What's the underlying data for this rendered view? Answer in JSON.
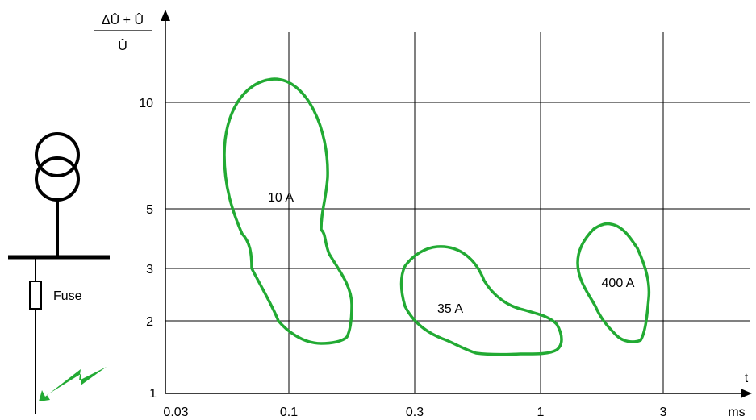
{
  "axes": {
    "y_label_numerator": "ΔÛ + Û",
    "y_label_denominator": "Û",
    "x_label_t": "t",
    "x_unit": "ms",
    "y_ticks": [
      "10",
      "5",
      "3",
      "2",
      "1"
    ],
    "x_ticks": [
      "0.03",
      "0.1",
      "0.3",
      "1",
      "3"
    ]
  },
  "regions": [
    {
      "label": "10 A"
    },
    {
      "label": "35 A"
    },
    {
      "label": "400 A"
    }
  ],
  "circuit": {
    "fuse_label": "Fuse"
  },
  "colors": {
    "region_stroke": "#22aa33",
    "lightning": "#22aa33",
    "lines": "#000000"
  }
}
